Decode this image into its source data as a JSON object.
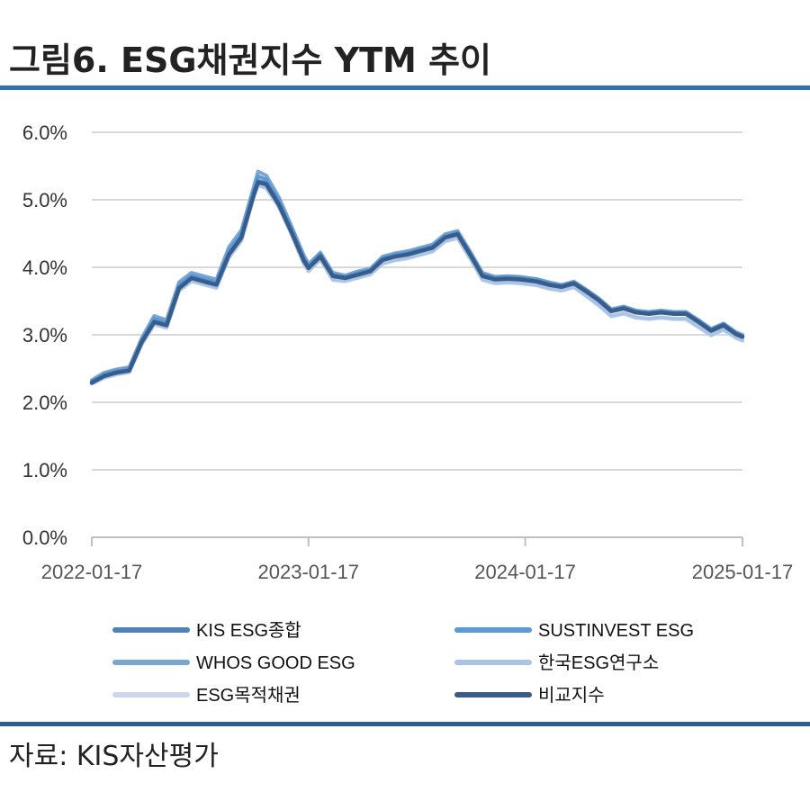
{
  "title": "그림6. ESG채권지수 YTM 추이",
  "source": "자료: KIS자산평가",
  "colors": {
    "rule_top": "#2e74b5",
    "rule_bottom": "#2c5d8f",
    "grid": "#d9d9d9"
  },
  "chart_data": {
    "type": "line",
    "title": "그림6. ESG채권지수 YTM 추이",
    "xlabel": "",
    "ylabel": "",
    "x_tick_labels": [
      "2022-01-17",
      "2023-01-17",
      "2024-01-17",
      "2025-01-17"
    ],
    "y_tick_labels": [
      "0.0%",
      "1.0%",
      "2.0%",
      "3.0%",
      "4.0%",
      "5.0%",
      "6.0%"
    ],
    "ylim": [
      0,
      6
    ],
    "xlim": [
      "2022-01-17",
      "2025-01-17"
    ],
    "grid": "horizontal",
    "legend_position": "bottom",
    "x": [
      "2022-01-17",
      "2022-02-07",
      "2022-02-28",
      "2022-03-21",
      "2022-04-11",
      "2022-05-02",
      "2022-05-23",
      "2022-06-13",
      "2022-07-04",
      "2022-07-25",
      "2022-08-15",
      "2022-09-05",
      "2022-09-26",
      "2022-10-17",
      "2022-10-24",
      "2022-11-07",
      "2022-11-28",
      "2022-12-19",
      "2023-01-09",
      "2023-01-17",
      "2023-02-06",
      "2023-02-27",
      "2023-03-20",
      "2023-04-10",
      "2023-05-01",
      "2023-05-22",
      "2023-06-12",
      "2023-07-03",
      "2023-07-24",
      "2023-08-14",
      "2023-09-04",
      "2023-09-25",
      "2023-10-16",
      "2023-11-06",
      "2023-11-27",
      "2023-12-18",
      "2024-01-08",
      "2024-01-17",
      "2024-02-05",
      "2024-02-26",
      "2024-03-18",
      "2024-04-08",
      "2024-04-29",
      "2024-05-20",
      "2024-06-10",
      "2024-07-01",
      "2024-07-22",
      "2024-08-12",
      "2024-09-02",
      "2024-09-23",
      "2024-10-14",
      "2024-11-04",
      "2024-11-25",
      "2024-12-16",
      "2025-01-06",
      "2025-01-17"
    ],
    "series": [
      {
        "name": "KIS ESG종합",
        "color": "#4f81bd",
        "values": [
          2.3,
          2.4,
          2.45,
          2.48,
          2.9,
          3.2,
          3.15,
          3.7,
          3.85,
          3.8,
          3.75,
          4.2,
          4.45,
          5.1,
          5.28,
          5.25,
          4.95,
          4.55,
          4.12,
          4.0,
          4.18,
          3.88,
          3.85,
          3.9,
          3.95,
          4.12,
          4.17,
          4.2,
          4.25,
          4.3,
          4.45,
          4.5,
          4.2,
          3.88,
          3.83,
          3.84,
          3.83,
          3.82,
          3.8,
          3.75,
          3.72,
          3.77,
          3.65,
          3.52,
          3.36,
          3.4,
          3.34,
          3.32,
          3.34,
          3.32,
          3.32,
          3.2,
          3.07,
          3.15,
          3.02,
          2.98
        ]
      },
      {
        "name": "SUSTINVEST ESG",
        "color": "#5b9bd5",
        "values": [
          2.31,
          2.42,
          2.47,
          2.5,
          2.92,
          3.24,
          3.18,
          3.74,
          3.88,
          3.83,
          3.78,
          4.25,
          4.5,
          5.15,
          5.35,
          5.3,
          4.99,
          4.58,
          4.15,
          4.02,
          4.2,
          3.9,
          3.86,
          3.92,
          3.96,
          4.14,
          4.19,
          4.22,
          4.27,
          4.32,
          4.47,
          4.52,
          4.22,
          3.9,
          3.85,
          3.86,
          3.85,
          3.84,
          3.82,
          3.77,
          3.73,
          3.78,
          3.66,
          3.53,
          3.37,
          3.41,
          3.35,
          3.33,
          3.35,
          3.33,
          3.33,
          3.21,
          3.08,
          3.16,
          3.03,
          2.99
        ]
      },
      {
        "name": "WHOS GOOD ESG",
        "color": "#7aa6d6",
        "values": [
          2.33,
          2.44,
          2.49,
          2.52,
          2.95,
          3.28,
          3.22,
          3.78,
          3.92,
          3.87,
          3.82,
          4.3,
          4.55,
          5.2,
          5.42,
          5.36,
          5.04,
          4.62,
          4.18,
          4.05,
          4.22,
          3.92,
          3.88,
          3.94,
          3.98,
          4.16,
          4.21,
          4.24,
          4.29,
          4.34,
          4.49,
          4.54,
          4.24,
          3.92,
          3.86,
          3.87,
          3.86,
          3.85,
          3.83,
          3.78,
          3.74,
          3.79,
          3.67,
          3.54,
          3.38,
          3.42,
          3.36,
          3.34,
          3.36,
          3.34,
          3.34,
          3.22,
          3.09,
          3.17,
          3.04,
          3.0
        ]
      },
      {
        "name": "한국ESG연구소",
        "color": "#a9c4e6",
        "values": [
          2.28,
          2.37,
          2.42,
          2.45,
          2.86,
          3.16,
          3.11,
          3.66,
          3.8,
          3.75,
          3.7,
          4.15,
          4.4,
          5.05,
          5.22,
          5.18,
          4.9,
          4.5,
          4.06,
          3.95,
          4.12,
          3.82,
          3.8,
          3.85,
          3.9,
          4.06,
          4.11,
          4.14,
          4.19,
          4.24,
          4.39,
          4.44,
          4.14,
          3.82,
          3.77,
          3.78,
          3.77,
          3.76,
          3.74,
          3.69,
          3.66,
          3.71,
          3.58,
          3.44,
          3.28,
          3.32,
          3.26,
          3.24,
          3.26,
          3.24,
          3.24,
          3.12,
          3.0,
          3.08,
          2.96,
          2.92
        ]
      },
      {
        "name": "ESG목적채권",
        "color": "#c9d8ee",
        "values": [
          2.27,
          2.36,
          2.41,
          2.44,
          2.85,
          3.15,
          3.1,
          3.65,
          3.79,
          3.74,
          3.69,
          4.14,
          4.39,
          5.04,
          5.21,
          5.17,
          4.89,
          4.49,
          4.05,
          3.94,
          4.11,
          3.81,
          3.79,
          3.84,
          3.89,
          4.05,
          4.1,
          4.13,
          4.18,
          4.23,
          4.38,
          4.43,
          4.13,
          3.81,
          3.76,
          3.77,
          3.76,
          3.75,
          3.73,
          3.68,
          3.65,
          3.7,
          3.57,
          3.43,
          3.27,
          3.31,
          3.25,
          3.23,
          3.25,
          3.23,
          3.23,
          3.11,
          2.99,
          3.07,
          2.95,
          2.91
        ]
      },
      {
        "name": "비교지수",
        "color": "#385d8a",
        "values": [
          2.29,
          2.39,
          2.44,
          2.47,
          2.89,
          3.19,
          3.14,
          3.69,
          3.84,
          3.79,
          3.74,
          4.19,
          4.44,
          5.08,
          5.26,
          5.23,
          4.93,
          4.53,
          4.1,
          3.99,
          4.16,
          3.87,
          3.84,
          3.89,
          3.94,
          4.11,
          4.16,
          4.19,
          4.24,
          4.29,
          4.44,
          4.49,
          4.19,
          3.87,
          3.82,
          3.83,
          3.82,
          3.81,
          3.79,
          3.74,
          3.71,
          3.76,
          3.64,
          3.51,
          3.35,
          3.39,
          3.33,
          3.31,
          3.33,
          3.31,
          3.31,
          3.19,
          3.06,
          3.14,
          3.01,
          2.97
        ]
      }
    ]
  }
}
